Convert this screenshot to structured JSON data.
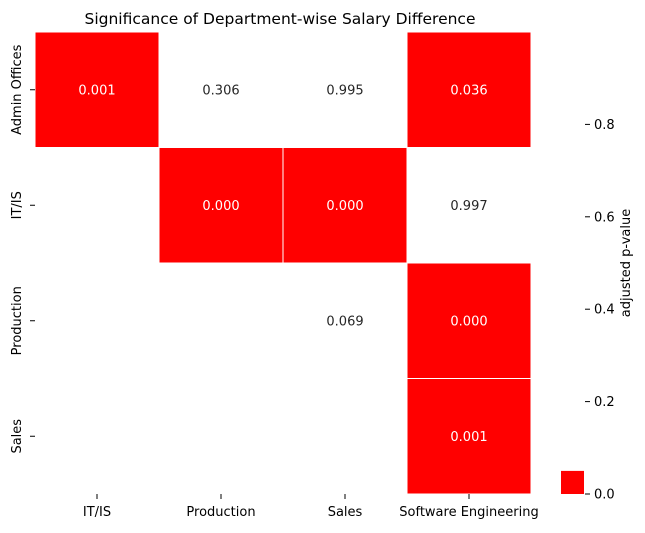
{
  "chart_data": {
    "type": "heatmap",
    "title": "Significance of Department-wise Salary Difference",
    "rows": [
      "Admin Offices",
      "IT/IS",
      "Production",
      "Sales"
    ],
    "columns": [
      "IT/IS",
      "Production",
      "Sales",
      "Software Engineering"
    ],
    "values": [
      [
        0.001,
        0.306,
        0.995,
        0.036
      ],
      [
        null,
        0.0,
        0.0,
        0.997
      ],
      [
        null,
        null,
        0.069,
        0.0
      ],
      [
        null,
        null,
        null,
        0.001
      ]
    ],
    "value_labels": [
      [
        "0.001",
        "0.306",
        "0.995",
        "0.036"
      ],
      [
        "",
        "0.000",
        "0.000",
        "0.997"
      ],
      [
        "",
        "",
        "0.069",
        "0.000"
      ],
      [
        "",
        "",
        "",
        "0.001"
      ]
    ],
    "significance_threshold": 0.05,
    "colors": {
      "significant": "#ff0000",
      "not_significant": "#ffffff",
      "text_on_red": "#ffffff",
      "text_on_white": "#262626"
    },
    "colorbar": {
      "label": "adjusted p-value",
      "ticks": [
        0.0,
        0.2,
        0.4,
        0.6,
        0.8
      ],
      "tick_labels": [
        "0.0",
        "0.2",
        "0.4",
        "0.6",
        "0.8"
      ],
      "range": [
        0,
        1
      ]
    }
  }
}
